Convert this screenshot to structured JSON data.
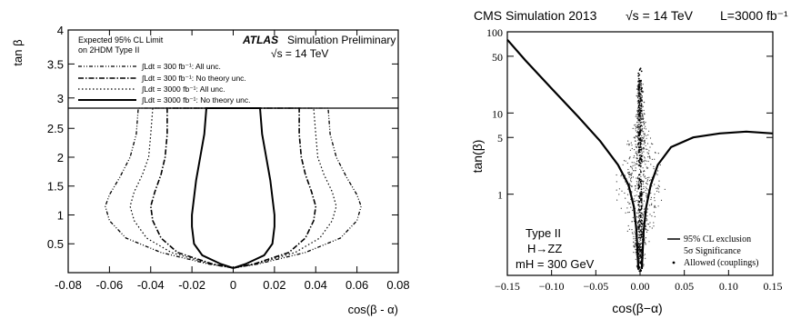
{
  "chart_data": [
    {
      "type": "line",
      "experiment": "ATLAS",
      "header": "Simulation Preliminary",
      "energy": "√s = 14 TeV",
      "legend_title": "Expected 95% CL Limit on 2HDM Type II",
      "legend_title_lines": [
        "Expected 95% CL Limit",
        "on 2HDM Type II"
      ],
      "legend_position": "top",
      "xlabel": "cos(β - α)",
      "ylabel": "tan β",
      "xlim": [
        -0.08,
        0.08
      ],
      "ylim": [
        0,
        4
      ],
      "y_break": 2.85,
      "x_ticks": [
        "-0.08",
        "-0.06",
        "-0.04",
        "-0.02",
        "0",
        "0.02",
        "0.04",
        "0.06",
        "0.08"
      ],
      "y_ticks": [
        "0.5",
        "1",
        "1.5",
        "2",
        "2.5",
        "3",
        "3.5",
        "4"
      ],
      "series": [
        {
          "name": "∫Ldt = 300 fb⁻¹: All unc.",
          "style": "dashdotdot",
          "points": [
            [
              0,
              0.08
            ],
            [
              -0.012,
              0.15
            ],
            [
              -0.035,
              0.35
            ],
            [
              -0.052,
              0.6
            ],
            [
              -0.06,
              0.9
            ],
            [
              -0.062,
              1.15
            ],
            [
              -0.06,
              1.35
            ],
            [
              -0.055,
              1.65
            ],
            [
              -0.05,
              2.0
            ],
            [
              -0.047,
              2.4
            ],
            [
              -0.046,
              2.85
            ],
            [
              0.046,
              2.85
            ],
            [
              0.047,
              2.4
            ],
            [
              0.05,
              2.0
            ],
            [
              0.055,
              1.65
            ],
            [
              0.06,
              1.35
            ],
            [
              0.062,
              1.15
            ],
            [
              0.06,
              0.9
            ],
            [
              0.052,
              0.6
            ],
            [
              0.035,
              0.35
            ],
            [
              0.012,
              0.15
            ],
            [
              0,
              0.08
            ]
          ]
        },
        {
          "name": "∫Ldt = 300 fb⁻¹: No theory unc.",
          "style": "dashdot",
          "points": [
            [
              0,
              0.08
            ],
            [
              -0.01,
              0.15
            ],
            [
              -0.027,
              0.35
            ],
            [
              -0.035,
              0.6
            ],
            [
              -0.039,
              0.9
            ],
            [
              -0.04,
              1.15
            ],
            [
              -0.038,
              1.4
            ],
            [
              -0.035,
              1.7
            ],
            [
              -0.033,
              2.0
            ],
            [
              -0.032,
              2.4
            ],
            [
              -0.032,
              2.85
            ],
            [
              0.032,
              2.85
            ],
            [
              0.032,
              2.4
            ],
            [
              0.033,
              2.0
            ],
            [
              0.035,
              1.7
            ],
            [
              0.038,
              1.4
            ],
            [
              0.04,
              1.15
            ],
            [
              0.039,
              0.9
            ],
            [
              0.035,
              0.6
            ],
            [
              0.027,
              0.35
            ],
            [
              0.01,
              0.15
            ],
            [
              0,
              0.08
            ]
          ]
        },
        {
          "name": "∫Ldt = 3000 fb⁻¹: All unc.",
          "style": "dotted",
          "points": [
            [
              0,
              0.08
            ],
            [
              -0.011,
              0.15
            ],
            [
              -0.03,
              0.35
            ],
            [
              -0.042,
              0.6
            ],
            [
              -0.048,
              0.9
            ],
            [
              -0.05,
              1.15
            ],
            [
              -0.048,
              1.4
            ],
            [
              -0.044,
              1.7
            ],
            [
              -0.041,
              2.0
            ],
            [
              -0.04,
              2.4
            ],
            [
              -0.039,
              2.85
            ],
            [
              0.039,
              2.85
            ],
            [
              0.04,
              2.4
            ],
            [
              0.041,
              2.0
            ],
            [
              0.044,
              1.7
            ],
            [
              0.048,
              1.4
            ],
            [
              0.05,
              1.15
            ],
            [
              0.048,
              0.9
            ],
            [
              0.042,
              0.6
            ],
            [
              0.03,
              0.35
            ],
            [
              0.011,
              0.15
            ],
            [
              0,
              0.08
            ]
          ]
        },
        {
          "name": "∫Ldt = 3000 fb⁻¹: No theory unc.",
          "style": "solid",
          "points": [
            [
              0,
              0.08
            ],
            [
              -0.006,
              0.15
            ],
            [
              -0.015,
              0.3
            ],
            [
              -0.019,
              0.5
            ],
            [
              -0.02,
              0.8
            ],
            [
              -0.02,
              1.0
            ],
            [
              -0.019,
              1.3
            ],
            [
              -0.018,
              1.6
            ],
            [
              -0.016,
              2.0
            ],
            [
              -0.014,
              2.4
            ],
            [
              -0.013,
              2.85
            ],
            [
              0.013,
              2.85
            ],
            [
              0.014,
              2.4
            ],
            [
              0.016,
              2.0
            ],
            [
              0.018,
              1.6
            ],
            [
              0.019,
              1.3
            ],
            [
              0.02,
              1.0
            ],
            [
              0.02,
              0.8
            ],
            [
              0.019,
              0.5
            ],
            [
              0.015,
              0.3
            ],
            [
              0.006,
              0.15
            ],
            [
              0,
              0.08
            ]
          ]
        }
      ]
    },
    {
      "type": "scatter",
      "header": "CMS Simulation 2013",
      "energy": "√s = 14 TeV",
      "lumi": "L=3000 fb⁻¹",
      "xlabel": "cos(β−α)",
      "ylabel": "tan(β)",
      "xlim": [
        -0.15,
        0.15
      ],
      "ylim": [
        0.1,
        100
      ],
      "yscale": "log",
      "x_ticks": [
        "-0.15",
        "-0.10",
        "-0.05",
        "0.00",
        "0.05",
        "0.10",
        "0.15"
      ],
      "y_ticks": [
        "1",
        "5",
        "10",
        "50",
        "100"
      ],
      "annotations": [
        "Type II",
        "H→ZZ",
        "mH = 300 GeV"
      ],
      "legend_position": "bottom-right",
      "legend": [
        "95% CL exclusion",
        "5σ Significance",
        "Allowed (couplings)"
      ],
      "series": [
        {
          "name": "95% CL exclusion",
          "style": "solid",
          "points": [
            [
              -0.15,
              80
            ],
            [
              -0.13,
              45
            ],
            [
              -0.1,
              20
            ],
            [
              -0.07,
              9
            ],
            [
              -0.045,
              4.5
            ],
            [
              -0.025,
              2.3
            ],
            [
              -0.013,
              1.3
            ],
            [
              -0.007,
              0.7
            ],
            [
              -0.004,
              0.35
            ],
            [
              -0.002,
              0.12
            ]
          ]
        },
        {
          "name": "95% CL exclusion",
          "style": "solid",
          "points": [
            [
              0.002,
              0.12
            ],
            [
              0.004,
              0.35
            ],
            [
              0.007,
              0.7
            ],
            [
              0.012,
              1.3
            ],
            [
              0.02,
              2.3
            ],
            [
              0.035,
              3.8
            ],
            [
              0.06,
              5.0
            ],
            [
              0.09,
              5.6
            ],
            [
              0.12,
              5.9
            ],
            [
              0.15,
              5.6
            ]
          ]
        }
      ]
    }
  ]
}
